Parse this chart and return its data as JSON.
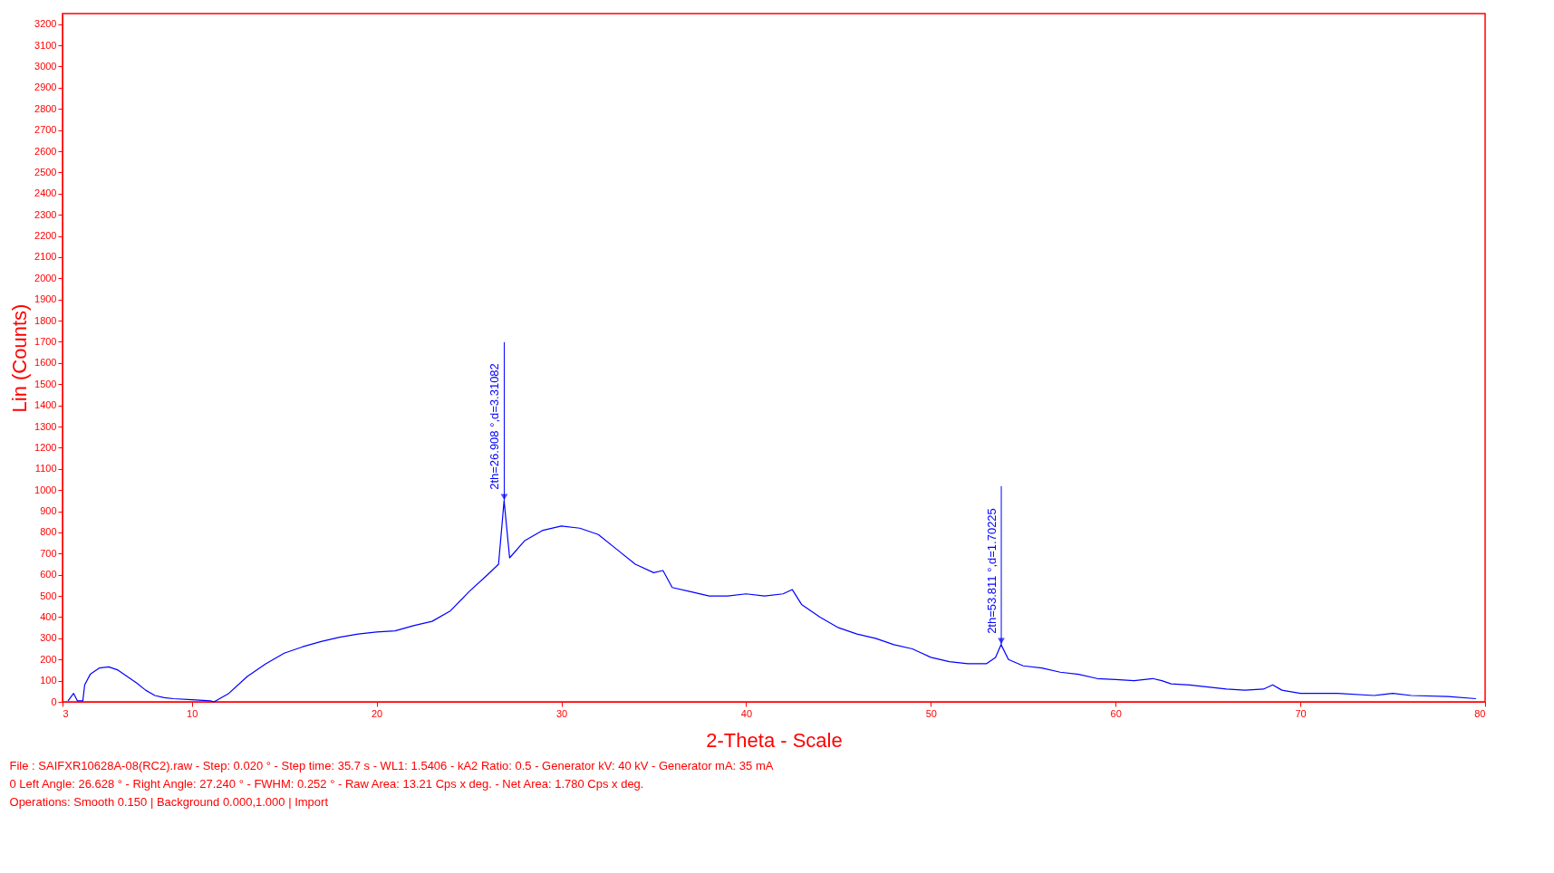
{
  "chart_data": {
    "type": "line",
    "xlabel": "2-Theta - Scale",
    "ylabel": "Lin (Counts)",
    "xlim": [
      3,
      80
    ],
    "xticks": [
      3,
      10,
      20,
      30,
      40,
      50,
      60,
      70,
      80
    ],
    "ylim": [
      0,
      3250
    ],
    "yticks": [
      0,
      100,
      200,
      300,
      400,
      500,
      600,
      700,
      800,
      900,
      1000,
      1100,
      1200,
      1300,
      1400,
      1500,
      1600,
      1700,
      1800,
      1900,
      2000,
      2100,
      2200,
      2300,
      2400,
      2500,
      2600,
      2700,
      2800,
      2900,
      3000,
      3100,
      3200
    ],
    "grid": false,
    "series": [
      {
        "color": "#0000ff",
        "x": [
          3.3,
          3.6,
          3.8,
          4.1,
          4.2,
          4.5,
          5.0,
          5.5,
          6.0,
          6.5,
          7.0,
          7.5,
          8.0,
          8.5,
          9.0,
          10.0,
          11.0,
          11.2,
          12.0,
          13.0,
          14.0,
          15.0,
          16.0,
          17.0,
          18.0,
          19.0,
          20.0,
          21.0,
          22.0,
          23.0,
          24.0,
          25.0,
          26.0,
          26.6,
          26.9,
          27.2,
          28.0,
          29.0,
          30.0,
          31.0,
          32.0,
          33.0,
          34.0,
          35.0,
          35.5,
          36.0,
          37.0,
          38.0,
          39.0,
          40.0,
          41.0,
          42.0,
          42.5,
          43.0,
          44.0,
          45.0,
          46.0,
          47.0,
          48.0,
          49.0,
          50.0,
          51.0,
          52.0,
          53.0,
          53.5,
          53.8,
          54.2,
          55.0,
          56.0,
          57.0,
          58.0,
          59.0,
          60.0,
          61.0,
          62.0,
          62.5,
          63.0,
          64.0,
          65.0,
          66.0,
          67.0,
          68.0,
          68.5,
          69.0,
          70.0,
          72.0,
          74.0,
          75.0,
          76.0,
          78.0,
          79.5
        ],
        "values": [
          5,
          40,
          5,
          5,
          80,
          130,
          160,
          165,
          150,
          120,
          90,
          55,
          30,
          20,
          15,
          10,
          5,
          0,
          40,
          120,
          180,
          230,
          260,
          285,
          305,
          320,
          330,
          335,
          360,
          380,
          430,
          520,
          600,
          650,
          950,
          680,
          760,
          810,
          830,
          820,
          790,
          720,
          650,
          610,
          620,
          540,
          520,
          500,
          500,
          510,
          500,
          510,
          530,
          460,
          400,
          350,
          320,
          300,
          270,
          250,
          210,
          190,
          180,
          180,
          210,
          270,
          200,
          170,
          160,
          140,
          130,
          110,
          105,
          100,
          110,
          100,
          85,
          80,
          70,
          60,
          55,
          60,
          80,
          55,
          40,
          40,
          30,
          40,
          30,
          25,
          15
        ]
      }
    ],
    "annotations": [
      {
        "text": "2th=26.908 °,d=3.31082",
        "x": 26.908,
        "y": 950
      },
      {
        "text": "2th=53.811 °,d=1.70225",
        "x": 53.811,
        "y": 270
      },
      "File : SAIFXR10628A-08(RC2).raw - Step: 0.020 ° - Step time: 35.7 s - WL1: 1.5406 - kA2 Ratio: 0.5 - Generator kV: 40 kV - Generator mA: 35 mA",
      "0   Left Angle: 26.628 ° - Right Angle: 27.240 ° - FWHM: 0.252 ° - Raw Area: 13.21 Cps x deg. - Net Area: 1.780 Cps x deg.",
      "Operations: Smooth 0.150 | Background 0.000,1.000 | Import"
    ]
  }
}
